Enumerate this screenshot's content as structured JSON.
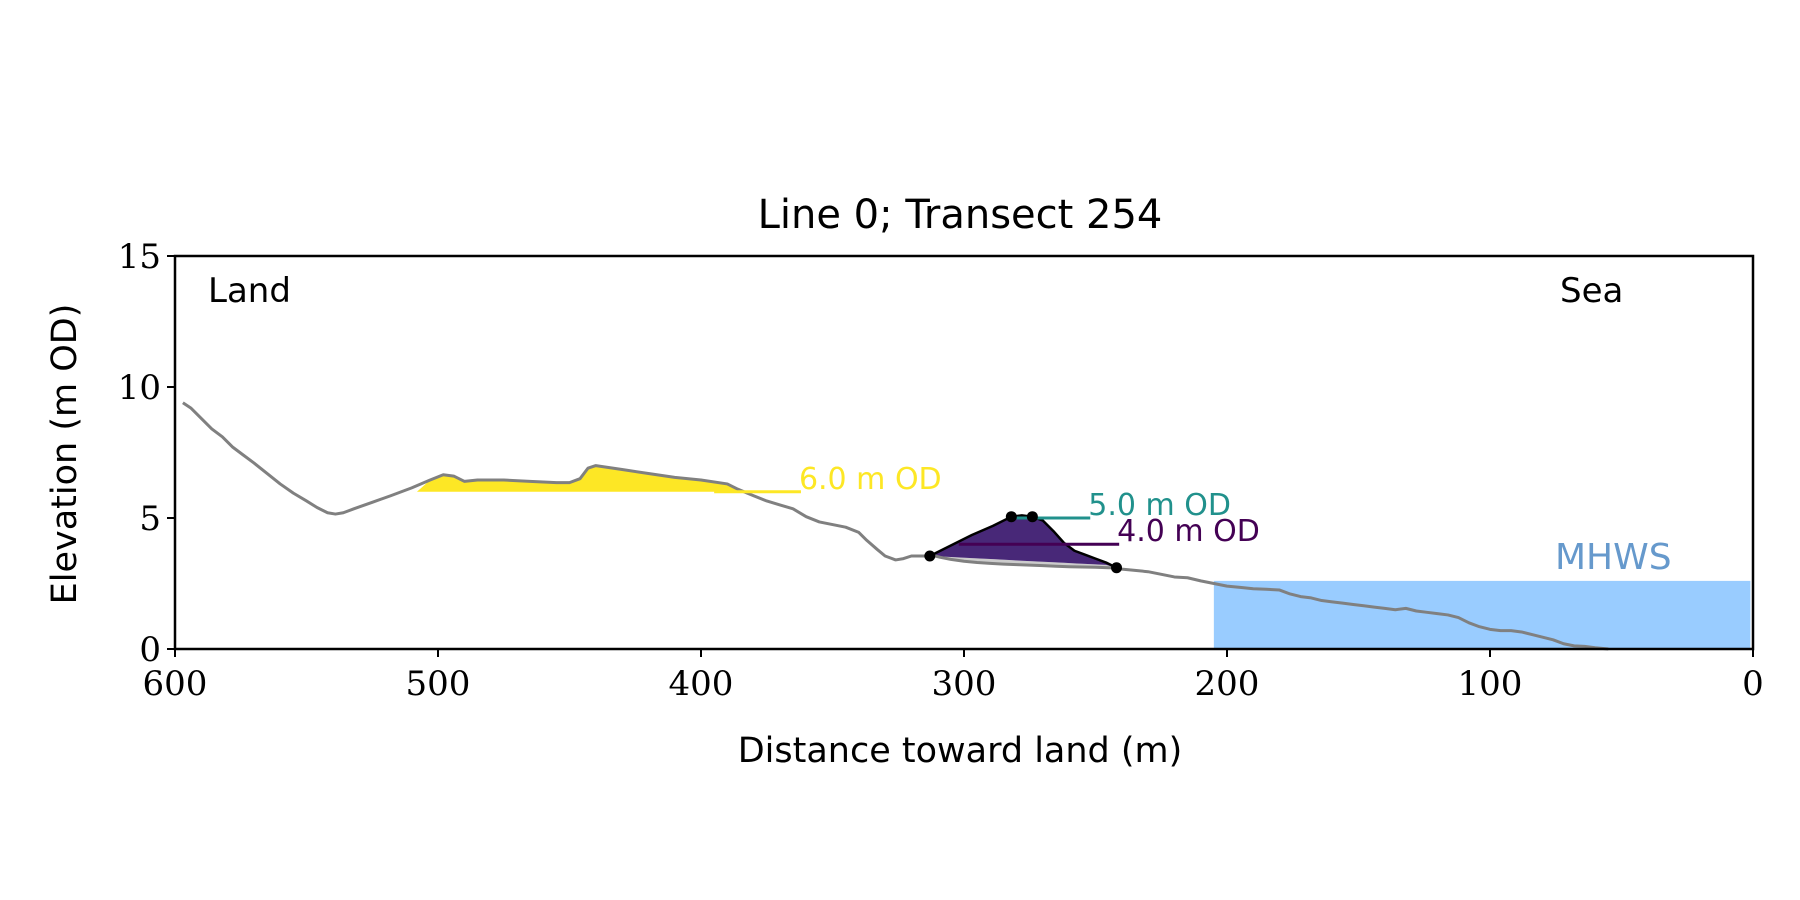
{
  "chart_data": {
    "type": "line",
    "title": "Line 0; Transect 254",
    "xlabel": "Distance toward land (m)",
    "ylabel": "Elevation (m OD)",
    "xlim": [
      600,
      0
    ],
    "ylim": [
      0,
      15
    ],
    "x_ticks": [
      "600",
      "500",
      "400",
      "300",
      "200",
      "100",
      "0"
    ],
    "y_ticks": [
      "0",
      "5",
      "10",
      "15"
    ],
    "annotations": {
      "land": "Land",
      "sea": "Sea"
    },
    "grid": false,
    "colors": {
      "profile": "#808080",
      "dune_outline": "#000000",
      "dune_fill": "#482878",
      "dune_base_fill": "#cccccc",
      "fill_6m": "#fde725",
      "mhws_fill": "#99ccff",
      "mhws_text": "#6699cc",
      "level_6": "#fde725",
      "level_5": "#21918c",
      "level_4": "#440154"
    },
    "profile": {
      "x": [
        597,
        594,
        590,
        586,
        582,
        578,
        574,
        570,
        565,
        560,
        555,
        550,
        546,
        542,
        539,
        536,
        532,
        525,
        518,
        510,
        503,
        498,
        494,
        490,
        485,
        475,
        465,
        455,
        450,
        446,
        443,
        440,
        430,
        420,
        410,
        400,
        390,
        386,
        380,
        375,
        370,
        365,
        360,
        355,
        350,
        345,
        340,
        337,
        333,
        330,
        326,
        323,
        320,
        318,
        315,
        313,
        311,
        309,
        305,
        300,
        295,
        290,
        285,
        280,
        275,
        270,
        265,
        260,
        255,
        250,
        245,
        242,
        240,
        235,
        230,
        225,
        220,
        215,
        210,
        205,
        200,
        195,
        190,
        185,
        180,
        176,
        172,
        168,
        164,
        160,
        156,
        152,
        148,
        144,
        140,
        136,
        132,
        128,
        124,
        120,
        116,
        112,
        108,
        104,
        100,
        96,
        92,
        88,
        84,
        80,
        76,
        72,
        68,
        64,
        60,
        57,
        55
      ],
      "y": [
        9.4,
        9.2,
        8.8,
        8.4,
        8.1,
        7.7,
        7.4,
        7.1,
        6.7,
        6.3,
        5.95,
        5.65,
        5.4,
        5.2,
        5.15,
        5.2,
        5.35,
        5.6,
        5.85,
        6.15,
        6.45,
        6.65,
        6.6,
        6.4,
        6.45,
        6.45,
        6.4,
        6.35,
        6.35,
        6.5,
        6.9,
        7.0,
        6.85,
        6.7,
        6.55,
        6.45,
        6.3,
        6.1,
        5.85,
        5.65,
        5.5,
        5.35,
        5.05,
        4.85,
        4.75,
        4.65,
        4.45,
        4.15,
        3.8,
        3.55,
        3.4,
        3.45,
        3.55,
        3.55,
        3.55,
        3.55,
        3.55,
        3.5,
        3.42,
        3.35,
        3.3,
        3.27,
        3.24,
        3.22,
        3.2,
        3.18,
        3.16,
        3.14,
        3.13,
        3.12,
        3.1,
        3.1,
        3.05,
        3.0,
        2.95,
        2.85,
        2.75,
        2.72,
        2.6,
        2.5,
        2.4,
        2.35,
        2.3,
        2.28,
        2.25,
        2.1,
        2.0,
        1.95,
        1.85,
        1.8,
        1.75,
        1.7,
        1.65,
        1.6,
        1.55,
        1.5,
        1.55,
        1.45,
        1.4,
        1.35,
        1.3,
        1.2,
        1.0,
        0.85,
        0.75,
        0.7,
        0.7,
        0.65,
        0.55,
        0.45,
        0.35,
        0.2,
        0.12,
        0.1,
        0.05,
        0.02,
        0.0
      ]
    },
    "dune": {
      "x": [
        313,
        305,
        297,
        289,
        282,
        278,
        274,
        270,
        266,
        262,
        258,
        254,
        250,
        246,
        242
      ],
      "y": [
        3.55,
        3.95,
        4.35,
        4.7,
        5.05,
        5.1,
        5.05,
        4.9,
        4.5,
        4.05,
        3.75,
        3.6,
        3.45,
        3.3,
        3.1
      ],
      "base_y": [
        3.55,
        3.51,
        3.47,
        3.43,
        3.39,
        3.37,
        3.35,
        3.33,
        3.31,
        3.29,
        3.27,
        3.25,
        3.23,
        3.21,
        3.1
      ],
      "markers": [
        {
          "x": 313,
          "y": 3.55
        },
        {
          "x": 282,
          "y": 5.05
        },
        {
          "x": 274,
          "y": 5.05
        },
        {
          "x": 242,
          "y": 3.1
        }
      ]
    },
    "fill_6m": {
      "level": 6.0,
      "x_from": 508,
      "x_to": 384
    },
    "levels": [
      {
        "label": "6.0 m OD",
        "elevation": 6.0,
        "x_from": 395,
        "x_to": 362,
        "color": "#fde725"
      },
      {
        "label": "5.0 m OD",
        "elevation": 5.0,
        "x_from": 280,
        "x_to": 252,
        "color": "#21918c"
      },
      {
        "label": "4.0 m OD",
        "elevation": 4.0,
        "x_from": 302,
        "x_to": 241,
        "color": "#440154"
      }
    ],
    "mhws": {
      "label": "MHWS",
      "elevation": 2.6,
      "x_from": 205,
      "x_to": 1
    }
  }
}
